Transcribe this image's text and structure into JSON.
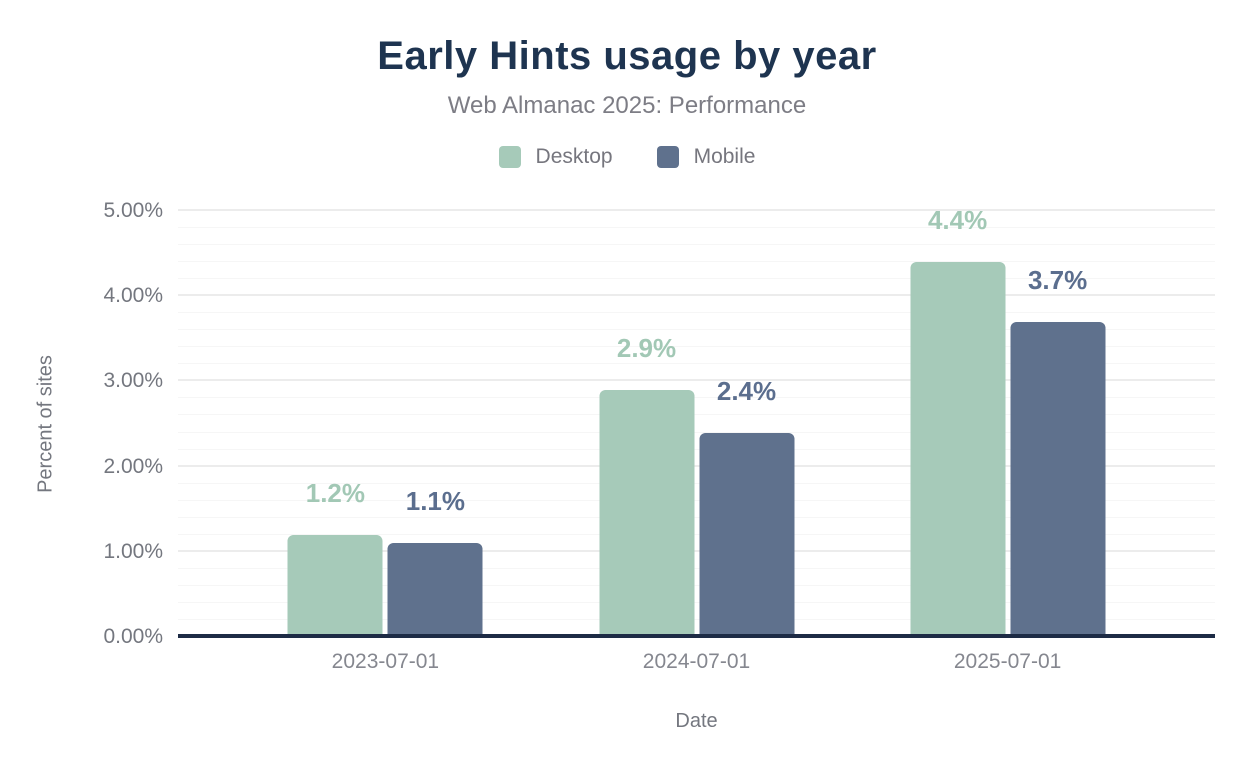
{
  "header": {
    "title": "Early Hints usage by year",
    "subtitle": "Web Almanac 2025: Performance"
  },
  "legend": [
    {
      "label": "Desktop",
      "color": "#a6cab9"
    },
    {
      "label": "Mobile",
      "color": "#5f718d"
    }
  ],
  "colors": {
    "title": "#1e3450",
    "axis_line": "#1d2b45",
    "desktop_bar": "#a6cab9",
    "mobile_bar": "#5f718d",
    "desktop_label": "#a2c8b5",
    "mobile_label": "#5b6e8e"
  },
  "chart_data": {
    "type": "bar",
    "title": "Early Hints usage by year",
    "subtitle": "Web Almanac 2025: Performance",
    "categories": [
      "2023-07-01",
      "2024-07-01",
      "2025-07-01"
    ],
    "series": [
      {
        "name": "Desktop",
        "color": "#a6cab9",
        "label_color": "#a2c8b5",
        "values": [
          1.2,
          2.9,
          4.4
        ],
        "labels": [
          "1.2%",
          "2.9%",
          "4.4%"
        ]
      },
      {
        "name": "Mobile",
        "color": "#5f718d",
        "label_color": "#5b6e8e",
        "values": [
          1.1,
          2.4,
          3.7
        ],
        "labels": [
          "1.1%",
          "2.4%",
          "3.7%"
        ]
      }
    ],
    "xlabel": "Date",
    "ylabel": "Percent of sites",
    "ylim": [
      0,
      5
    ],
    "y_ticks": [
      "0.00%",
      "1.00%",
      "2.00%",
      "3.00%",
      "4.00%",
      "5.00%"
    ],
    "y_minor_step": 0.2,
    "grid": true,
    "legend_position": "top",
    "data_labels": true
  }
}
